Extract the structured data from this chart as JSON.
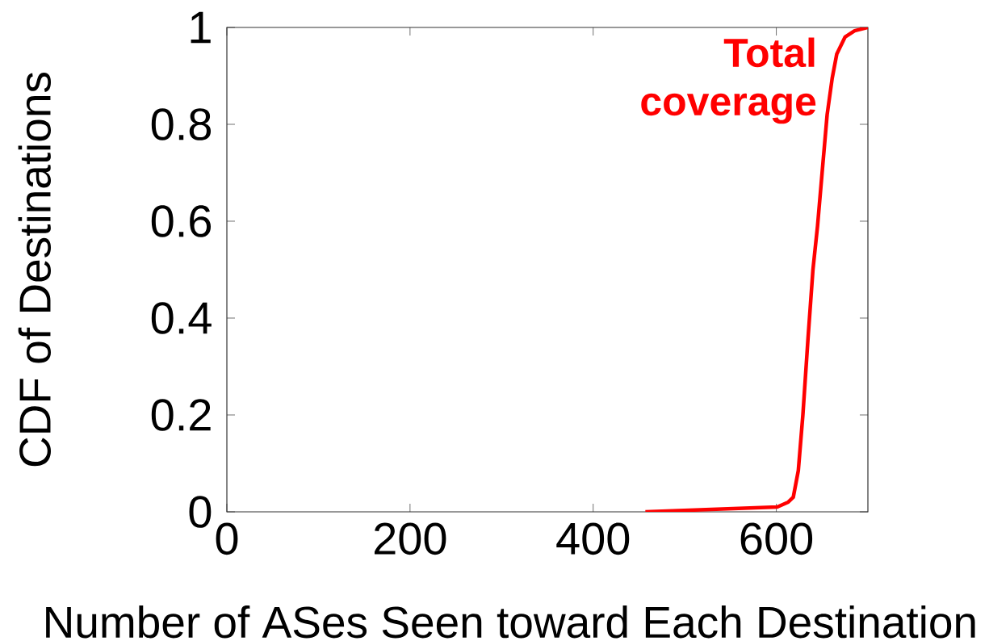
{
  "chart_data": {
    "type": "line",
    "xlabel": "Number of ASes Seen toward Each Destination",
    "ylabel": "CDF of Destinations",
    "annotations": [
      "Total coverage"
    ],
    "series": [
      {
        "color": "#ff0000",
        "x": [
          457,
          601,
          613,
          618.5,
          624,
          629,
          634.5,
          640,
          645,
          650,
          655.5,
          661,
          666,
          675,
          685.5,
          700
        ],
        "values": [
          0,
          0.01,
          0.02,
          0.03,
          0.085,
          0.2,
          0.355,
          0.5,
          0.59,
          0.7,
          0.82,
          0.895,
          0.945,
          0.98,
          0.993,
          1
        ]
      }
    ],
    "xlim": [
      0,
      700
    ],
    "ylim": [
      0,
      1
    ],
    "xticks": [
      0,
      200,
      400,
      600
    ],
    "yticks": [
      0,
      0.2,
      0.4,
      0.6,
      0.8,
      1
    ],
    "grid": false,
    "marker": "none",
    "line_style": "solid"
  }
}
